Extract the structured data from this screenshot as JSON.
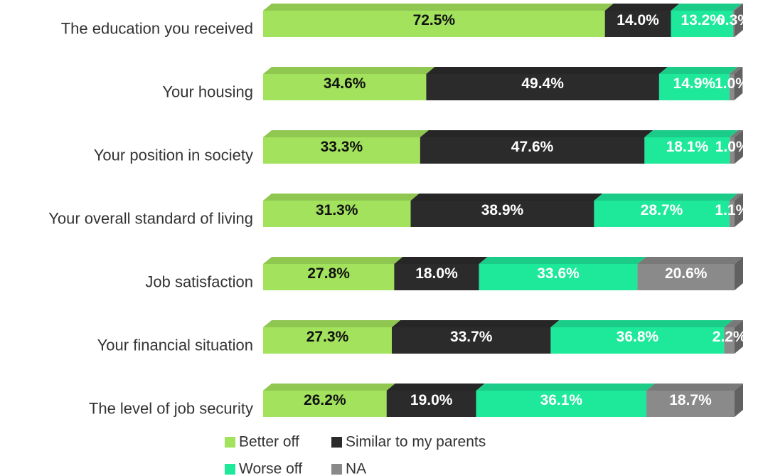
{
  "chart_data": {
    "type": "stacked-bar",
    "orientation": "horizontal",
    "categories": [
      "The education you received",
      "Your housing",
      "Your position in society",
      "Your overall standard of living",
      "Job satisfaction",
      "Your financial situation",
      "The level of job security"
    ],
    "xlim": [
      0,
      100
    ],
    "series": [
      {
        "name": "Better off",
        "color": "#a2e25c",
        "label_color": "#111111",
        "values": [
          72.5,
          34.6,
          33.3,
          31.3,
          27.8,
          27.3,
          26.2
        ],
        "value_labels": [
          "72.5%",
          "34.6%",
          "33.3%",
          "31.3%",
          "27.8%",
          "27.3%",
          "26.2%"
        ]
      },
      {
        "name": "Similar to my parents",
        "color": "#2b2b2b",
        "label_color": "#ffffff",
        "values": [
          14.0,
          49.4,
          47.6,
          38.9,
          18.0,
          33.7,
          19.0
        ],
        "value_labels": [
          "14.0%",
          "49.4%",
          "47.6%",
          "38.9%",
          "18.0%",
          "33.7%",
          "19.0%"
        ]
      },
      {
        "name": "Worse off",
        "color": "#1ee89a",
        "label_color": "#ffffff",
        "values": [
          13.2,
          14.9,
          18.1,
          28.7,
          33.6,
          36.8,
          36.1
        ],
        "value_labels": [
          "13.2%",
          "14.9%",
          "18.1%",
          "28.7%",
          "33.6%",
          "36.8%",
          "36.1%"
        ]
      },
      {
        "name": "NA",
        "color": "#8a8a8a",
        "label_color": "#ffffff",
        "values": [
          0.3,
          1.0,
          1.0,
          1.1,
          20.6,
          2.2,
          18.7
        ],
        "value_labels": [
          "0.3%",
          "1.0%",
          "1.0%",
          "1.1%",
          "20.6%",
          "2.2%",
          "18.7%"
        ]
      }
    ],
    "legend": "bottom"
  }
}
